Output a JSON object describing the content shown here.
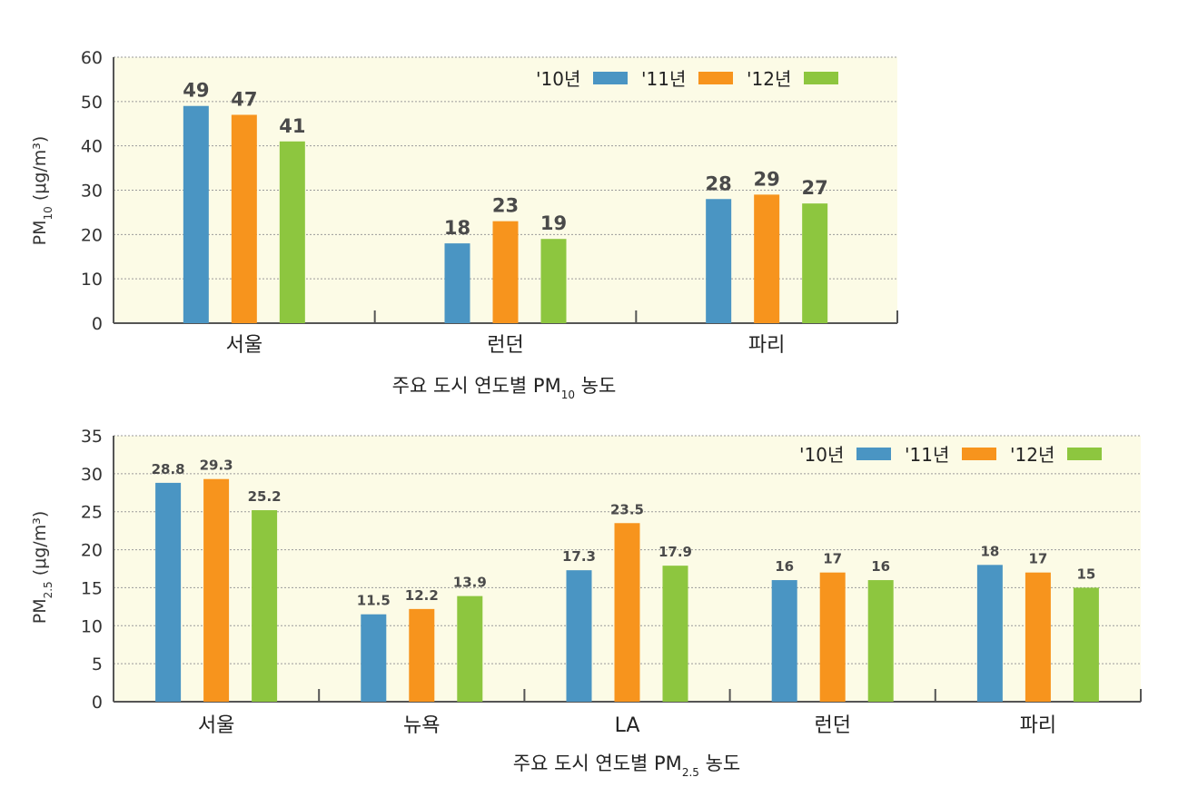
{
  "colors": {
    "y2010": "#4a95c3",
    "y2011": "#f7941d",
    "y2012": "#8dc63f",
    "plot_bg": "#fcfbe6",
    "grid": "#9a9a9a"
  },
  "chart_data": [
    {
      "type": "bar",
      "title": "주요 도시 연도별 PM10 농도",
      "title_parts": {
        "a": "주요 도시 연도별 PM",
        "sub": "10",
        "b": " 농도"
      },
      "ylabel_parts": {
        "a": "PM",
        "sub": "10",
        "b": " (μg/m³)"
      },
      "ylim": [
        0,
        60
      ],
      "yticks": [
        0,
        10,
        20,
        30,
        40,
        50,
        60
      ],
      "categories": [
        "서울",
        "런던",
        "파리"
      ],
      "series": [
        {
          "name": "'10년",
          "values": [
            49,
            18,
            28
          ],
          "labels": [
            "49",
            "18",
            "28"
          ]
        },
        {
          "name": "'11년",
          "values": [
            47,
            23,
            29
          ],
          "labels": [
            "47",
            "23",
            "29"
          ]
        },
        {
          "name": "'12년",
          "values": [
            41,
            19,
            27
          ],
          "labels": [
            "41",
            "19",
            "27"
          ]
        }
      ],
      "grid": true,
      "legend_position": "top-right"
    },
    {
      "type": "bar",
      "title": "주요 도시 연도별 PM2.5 농도",
      "title_parts": {
        "a": "주요 도시 연도별 PM",
        "sub": "2.5",
        "b": " 농도"
      },
      "ylabel_parts": {
        "a": "PM",
        "sub": "2.5",
        "b": " (μg/m³)"
      },
      "ylim": [
        0,
        35
      ],
      "yticks": [
        0,
        5,
        10,
        15,
        20,
        25,
        30,
        35
      ],
      "categories": [
        "서울",
        "뉴욕",
        "LA",
        "런던",
        "파리"
      ],
      "series": [
        {
          "name": "'10년",
          "values": [
            28.8,
            11.5,
            17.3,
            16,
            18
          ],
          "labels": [
            "28.8",
            "11.5",
            "17.3",
            "16",
            "18"
          ]
        },
        {
          "name": "'11년",
          "values": [
            29.3,
            12.2,
            23.5,
            17,
            17
          ],
          "labels": [
            "29.3",
            "12.2",
            "23.5",
            "17",
            "17"
          ]
        },
        {
          "name": "'12년",
          "values": [
            25.2,
            13.9,
            17.9,
            16,
            15
          ],
          "labels": [
            "25.2",
            "13.9",
            "17.9",
            "16",
            "15"
          ]
        }
      ],
      "grid": true,
      "legend_position": "top-right"
    }
  ]
}
